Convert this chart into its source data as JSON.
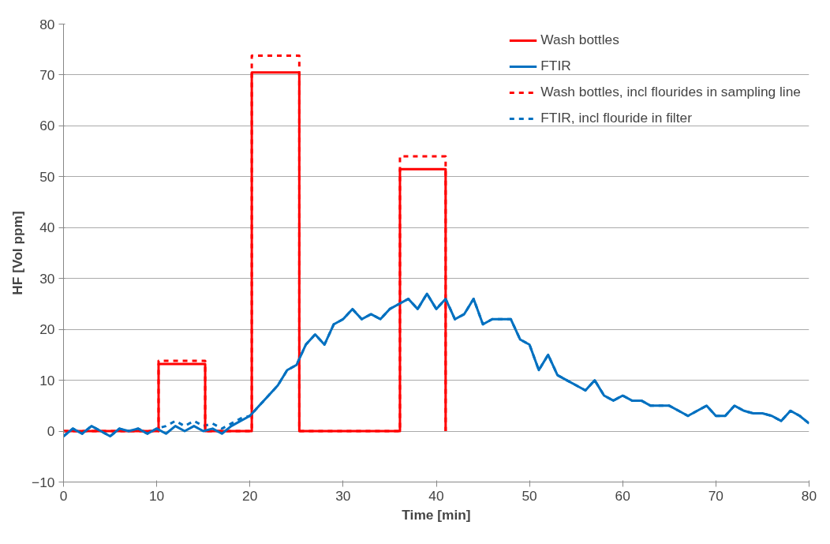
{
  "chart_data": {
    "type": "line",
    "xlabel": "Time [min]",
    "ylabel": "HF [Vol ppm]",
    "xlim": [
      0,
      80
    ],
    "ylim": [
      -10,
      80
    ],
    "xticks": [
      0,
      10,
      20,
      30,
      40,
      50,
      60,
      70,
      80
    ],
    "yticks": [
      -10,
      0,
      10,
      20,
      30,
      40,
      50,
      60,
      70,
      80
    ],
    "grid": "y",
    "legend": "top right",
    "series": [
      {
        "name": "Wash bottles, incl flourides in sampling line",
        "color": "#ff0000",
        "line_style": "dashed",
        "x": [
          0,
          10.2,
          10.2,
          15.2,
          15.2,
          20.2,
          20.2,
          25.3,
          25.3,
          36.1,
          36.1,
          41.0,
          41.0
        ],
        "values": [
          0,
          0,
          13.8,
          13.8,
          0,
          0,
          73.8,
          73.8,
          0,
          0,
          54,
          54,
          0
        ]
      },
      {
        "name": "FTIR, incl flouride in filter",
        "color": "#0070c0",
        "line_style": "dashed",
        "x": [
          0,
          1,
          2,
          3,
          4,
          5,
          6,
          7,
          8,
          9,
          10,
          11,
          12,
          13,
          14,
          15,
          16,
          17,
          18,
          19,
          20,
          21,
          22,
          23,
          24,
          25,
          26,
          27,
          28,
          29,
          30,
          31,
          32,
          33,
          34,
          35,
          36,
          37,
          38,
          39,
          40,
          41,
          42,
          43,
          44,
          45,
          46,
          47,
          48,
          49,
          50,
          51,
          52,
          53,
          54,
          55,
          56,
          57,
          58,
          59,
          60,
          61,
          62,
          63,
          64,
          65,
          66,
          67,
          68,
          69,
          70,
          71,
          72,
          73,
          74,
          75,
          76,
          77,
          78,
          79,
          80
        ],
        "values": [
          -1,
          0.5,
          -0.5,
          1,
          0,
          -1,
          0.5,
          0,
          0.5,
          -0.5,
          0.5,
          1,
          2,
          1,
          2,
          1,
          1.5,
          0.5,
          1.5,
          2.5,
          3,
          5,
          7,
          9,
          12,
          13,
          17,
          19,
          17,
          21,
          22,
          24,
          22,
          23,
          22,
          24,
          25,
          26,
          24,
          27,
          24,
          26,
          22,
          23,
          26,
          21,
          22,
          22,
          22,
          18,
          17,
          12,
          15,
          11,
          10,
          9,
          8,
          10,
          7,
          6,
          7,
          6,
          6,
          5,
          5,
          5,
          4,
          3,
          4,
          5,
          3,
          3,
          5,
          4,
          3.5,
          3.5,
          3,
          2,
          4,
          3,
          1.5
        ]
      },
      {
        "name": "Wash bottles",
        "color": "#ff0000",
        "line_style": "solid",
        "x": [
          0,
          10.2,
          10.2,
          15.2,
          15.2,
          20.2,
          20.2,
          25.3,
          25.3,
          36.1,
          36.1,
          41.0,
          41.0
        ],
        "values": [
          0,
          0,
          13.2,
          13.2,
          0,
          0,
          70.5,
          70.5,
          0,
          0,
          51.5,
          51.5,
          0
        ]
      },
      {
        "name": "FTIR",
        "color": "#0070c0",
        "line_style": "solid",
        "x": [
          0,
          1,
          2,
          3,
          4,
          5,
          6,
          7,
          8,
          9,
          10,
          11,
          12,
          13,
          14,
          15,
          16,
          17,
          18,
          19,
          20,
          21,
          22,
          23,
          24,
          25,
          26,
          27,
          28,
          29,
          30,
          31,
          32,
          33,
          34,
          35,
          36,
          37,
          38,
          39,
          40,
          41,
          42,
          43,
          44,
          45,
          46,
          47,
          48,
          49,
          50,
          51,
          52,
          53,
          54,
          55,
          56,
          57,
          58,
          59,
          60,
          61,
          62,
          63,
          64,
          65,
          66,
          67,
          68,
          69,
          70,
          71,
          72,
          73,
          74,
          75,
          76,
          77,
          78,
          79,
          80
        ],
        "values": [
          -1,
          0.5,
          -0.5,
          1,
          0,
          -1,
          0.5,
          0,
          0.5,
          -0.5,
          0.5,
          -0.5,
          1,
          0,
          1,
          0,
          0.5,
          -0.5,
          1,
          2,
          3,
          5,
          7,
          9,
          12,
          13,
          17,
          19,
          17,
          21,
          22,
          24,
          22,
          23,
          22,
          24,
          25,
          26,
          24,
          27,
          24,
          26,
          22,
          23,
          26,
          21,
          22,
          22,
          22,
          18,
          17,
          12,
          15,
          11,
          10,
          9,
          8,
          10,
          7,
          6,
          7,
          6,
          6,
          5,
          5,
          5,
          4,
          3,
          4,
          5,
          3,
          3,
          5,
          4,
          3.5,
          3.5,
          3,
          2,
          4,
          3,
          1.5
        ]
      }
    ]
  }
}
